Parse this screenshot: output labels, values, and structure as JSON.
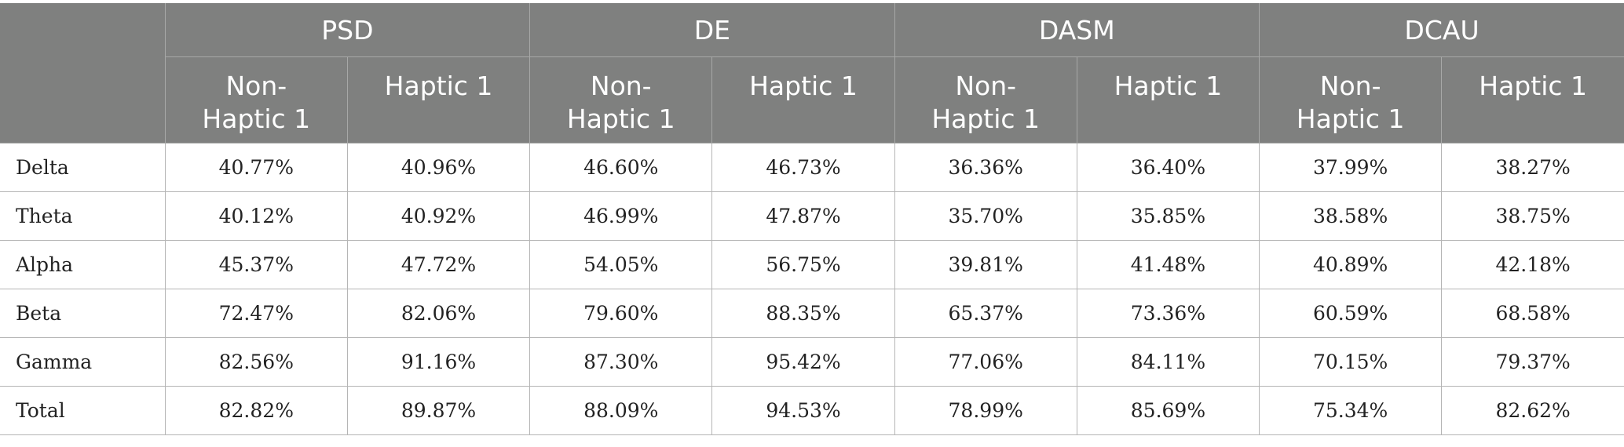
{
  "table": {
    "groups": [
      "PSD",
      "DE",
      "DASM",
      "DCAU"
    ],
    "subheaders": [
      [
        "Non-",
        "Haptic 1"
      ],
      [
        "Haptic 1"
      ]
    ],
    "rows": [
      {
        "label": "Delta",
        "values": [
          "40.77%",
          "40.96%",
          "46.60%",
          "46.73%",
          "36.36%",
          "36.40%",
          "37.99%",
          "38.27%"
        ]
      },
      {
        "label": "Theta",
        "values": [
          "40.12%",
          "40.92%",
          "46.99%",
          "47.87%",
          "35.70%",
          "35.85%",
          "38.58%",
          "38.75%"
        ]
      },
      {
        "label": "Alpha",
        "values": [
          "45.37%",
          "47.72%",
          "54.05%",
          "56.75%",
          "39.81%",
          "41.48%",
          "40.89%",
          "42.18%"
        ]
      },
      {
        "label": "Beta",
        "values": [
          "72.47%",
          "82.06%",
          "79.60%",
          "88.35%",
          "65.37%",
          "73.36%",
          "60.59%",
          "68.58%"
        ]
      },
      {
        "label": "Gamma",
        "values": [
          "82.56%",
          "91.16%",
          "87.30%",
          "95.42%",
          "77.06%",
          "84.11%",
          "70.15%",
          "79.37%"
        ]
      },
      {
        "label": "Total",
        "values": [
          "82.82%",
          "89.87%",
          "88.09%",
          "94.53%",
          "78.99%",
          "85.69%",
          "75.34%",
          "82.62%"
        ]
      }
    ]
  }
}
